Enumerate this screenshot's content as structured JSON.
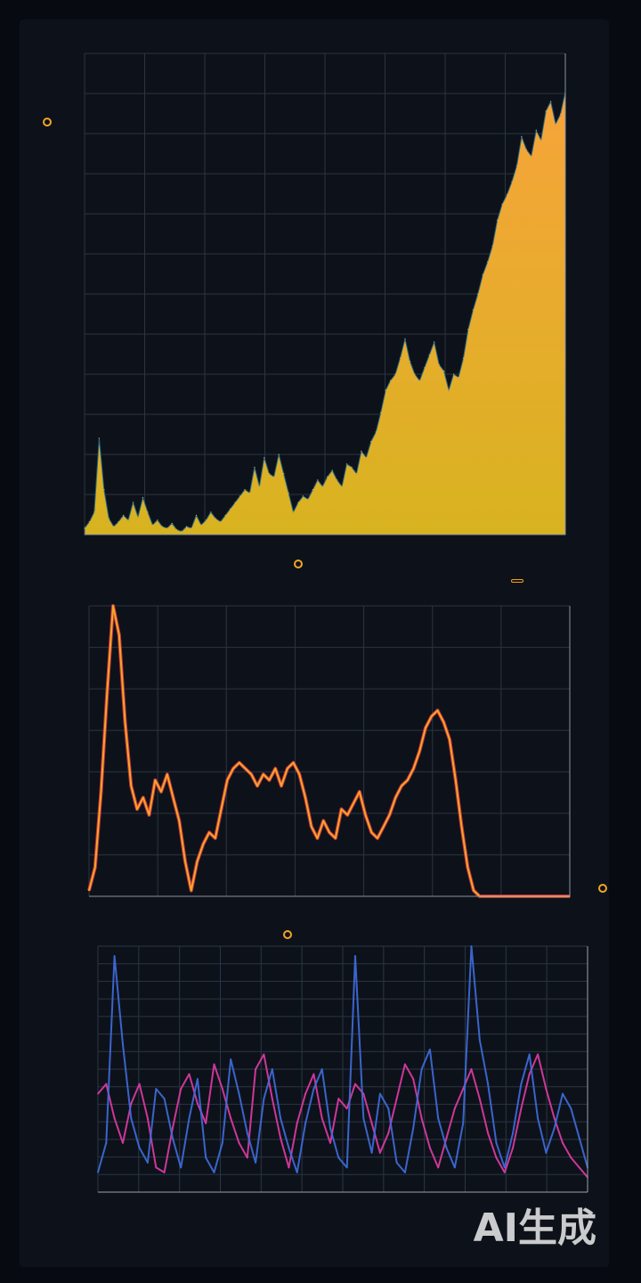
{
  "header": {
    "title_1": "",
    "title_2": "",
    "watermark": "AI生成"
  },
  "panels": {
    "p1": {
      "title": "",
      "badge": ""
    },
    "p2": {
      "title": "",
      "badge": ""
    },
    "p3": {
      "title": "",
      "badge": ""
    }
  },
  "colors": {
    "background": "#0d121a",
    "area_top": "#f7a43a",
    "area_bottom": "#d8b320",
    "line_orange": "#f5a623",
    "line_red": "#e0384d",
    "series_pink": "#e23ba5",
    "series_blue": "#3f6ee0",
    "grid": "#2c3440"
  },
  "chart_data": [
    {
      "type": "area",
      "title": "",
      "xlabel": "",
      "ylabel": "",
      "x": [
        0,
        1,
        2,
        3,
        4,
        5,
        6,
        7,
        8,
        9,
        10,
        11,
        12,
        13,
        14,
        15,
        16,
        17,
        18,
        19,
        20,
        21,
        22,
        23,
        24,
        25,
        26,
        27,
        28,
        29,
        30,
        31,
        32,
        33,
        34,
        35,
        36,
        37,
        38,
        39,
        40,
        41,
        42,
        43,
        44,
        45,
        46,
        47,
        48,
        49,
        50,
        51,
        52,
        53,
        54,
        55,
        56,
        57,
        58,
        59,
        60,
        61,
        62,
        63,
        64,
        65,
        66,
        67,
        68,
        69,
        70,
        71,
        72,
        73,
        74,
        75,
        76,
        77,
        78,
        79,
        80,
        81,
        82,
        83,
        84,
        85,
        86,
        87,
        88,
        89,
        90,
        91,
        92,
        93,
        94,
        95,
        96,
        97,
        98,
        99
      ],
      "values": [
        4,
        8,
        14,
        60,
        28,
        10,
        5,
        8,
        12,
        9,
        20,
        11,
        23,
        14,
        6,
        9,
        5,
        4,
        7,
        3,
        2,
        5,
        4,
        12,
        6,
        9,
        14,
        10,
        8,
        12,
        16,
        20,
        24,
        28,
        26,
        42,
        30,
        48,
        38,
        36,
        50,
        38,
        26,
        14,
        20,
        24,
        22,
        28,
        34,
        30,
        36,
        40,
        34,
        30,
        44,
        42,
        38,
        52,
        48,
        58,
        64,
        76,
        90,
        96,
        100,
        110,
        122,
        108,
        100,
        96,
        104,
        112,
        120,
        106,
        102,
        90,
        100,
        98,
        110,
        128,
        140,
        150,
        162,
        170,
        180,
        196,
        206,
        212,
        220,
        230,
        248,
        240,
        236,
        252,
        246,
        264,
        270,
        256,
        262,
        276
      ],
      "ylim": [
        0,
        300
      ],
      "grid": true
    },
    {
      "type": "line",
      "title": "",
      "xlabel": "",
      "ylabel": "",
      "x": [
        0,
        1,
        2,
        3,
        4,
        5,
        6,
        7,
        8,
        9,
        10,
        11,
        12,
        13,
        14,
        15,
        16,
        17,
        18,
        19,
        20,
        21,
        22,
        23,
        24,
        25,
        26,
        27,
        28,
        29,
        30,
        31,
        32,
        33,
        34,
        35,
        36,
        37,
        38,
        39,
        40,
        41,
        42,
        43,
        44,
        45,
        46,
        47,
        48,
        49,
        50,
        51,
        52,
        53,
        54,
        55,
        56,
        57,
        58,
        59,
        60,
        61,
        62,
        63,
        64,
        65,
        66,
        67,
        68,
        69,
        70,
        71,
        72,
        73,
        74,
        75,
        76,
        77,
        78,
        79,
        80
      ],
      "values": [
        2,
        10,
        36,
        70,
        100,
        90,
        60,
        38,
        30,
        34,
        28,
        40,
        36,
        42,
        34,
        26,
        12,
        2,
        12,
        18,
        22,
        20,
        30,
        40,
        44,
        46,
        44,
        42,
        38,
        42,
        40,
        44,
        38,
        44,
        46,
        42,
        34,
        24,
        20,
        26,
        22,
        20,
        30,
        28,
        32,
        36,
        28,
        22,
        20,
        24,
        28,
        34,
        38,
        40,
        44,
        50,
        58,
        62,
        64,
        60,
        54,
        40,
        24,
        10,
        2,
        0,
        0,
        0,
        0,
        0,
        0,
        0,
        0,
        0,
        0,
        0,
        0,
        0,
        0,
        0,
        0
      ],
      "ylim": [
        0,
        100
      ],
      "grid": true
    },
    {
      "type": "line",
      "title": "",
      "xlabel": "",
      "ylabel": "",
      "x": [
        0,
        1,
        2,
        3,
        4,
        5,
        6,
        7,
        8,
        9,
        10,
        11,
        12,
        13,
        14,
        15,
        16,
        17,
        18,
        19,
        20,
        21,
        22,
        23,
        24,
        25,
        26,
        27,
        28,
        29,
        30,
        31,
        32,
        33,
        34,
        35,
        36,
        37,
        38,
        39,
        40,
        41,
        42,
        43,
        44,
        45,
        46,
        47,
        48,
        49,
        50,
        51,
        52,
        53,
        54,
        55,
        56,
        57,
        58,
        59
      ],
      "series": [
        {
          "values": [
            40,
            44,
            30,
            20,
            36,
            44,
            30,
            10,
            8,
            26,
            42,
            48,
            36,
            28,
            52,
            42,
            30,
            20,
            14,
            50,
            56,
            38,
            22,
            10,
            28,
            40,
            48,
            30,
            20,
            38,
            34,
            44,
            40,
            28,
            16,
            24,
            38,
            52,
            46,
            30,
            18,
            10,
            22,
            34,
            42,
            50,
            38,
            24,
            14,
            8,
            18,
            34,
            48,
            56,
            42,
            30,
            20,
            14,
            10,
            6
          ]
        },
        {
          "values": [
            8,
            20,
            96,
            60,
            30,
            18,
            12,
            42,
            38,
            22,
            10,
            30,
            46,
            14,
            8,
            20,
            54,
            40,
            24,
            12,
            38,
            50,
            30,
            18,
            8,
            28,
            42,
            50,
            26,
            14,
            10,
            96,
            30,
            16,
            40,
            34,
            12,
            8,
            26,
            50,
            58,
            30,
            18,
            10,
            28,
            100,
            62,
            44,
            20,
            10,
            24,
            44,
            56,
            30,
            16,
            26,
            40,
            34,
            22,
            10
          ]
        }
      ],
      "ylim": [
        0,
        100
      ],
      "grid": true
    }
  ]
}
